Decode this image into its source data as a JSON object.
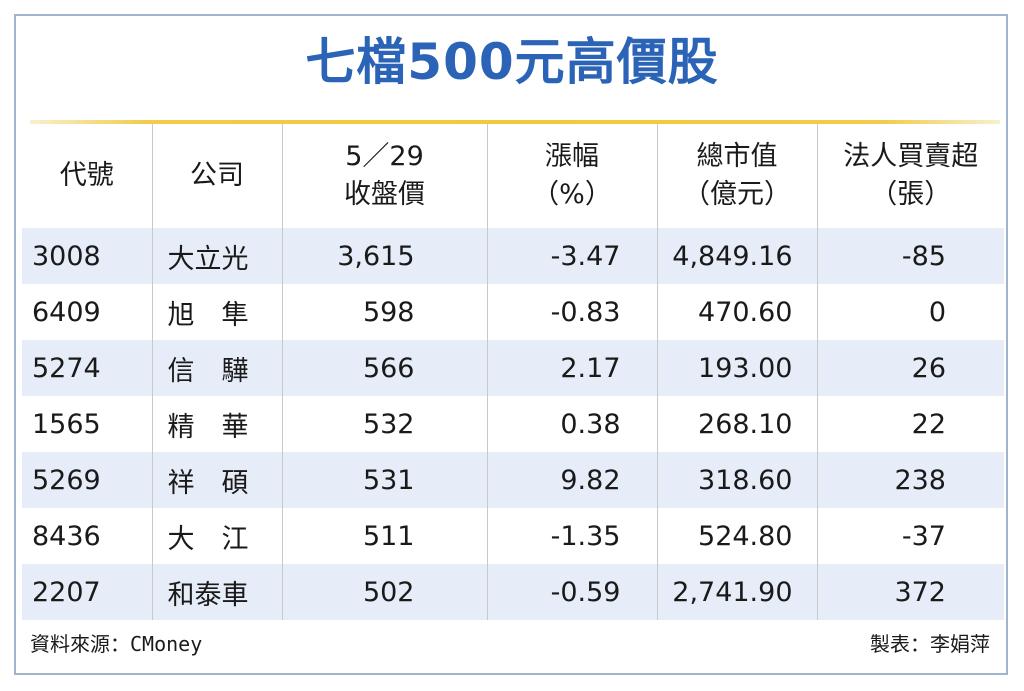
{
  "title": "七檔500元高價股",
  "headers": {
    "code": "代號",
    "company": "公司",
    "price_line1": "5／29",
    "price_line2": "收盤價",
    "change_line1": "漲幅",
    "change_line2": "（%）",
    "cap_line1": "總市值",
    "cap_line2": "（億元）",
    "net_line1": "法人買賣超",
    "net_line2": "（張）"
  },
  "rows": [
    {
      "code": "3008",
      "company": "大立光",
      "price": "3,615",
      "change": "-3.47",
      "cap": "4,849.16",
      "net": "-85"
    },
    {
      "code": "6409",
      "company": "旭　隼",
      "price": "598",
      "change": "-0.83",
      "cap": "470.60",
      "net": "0"
    },
    {
      "code": "5274",
      "company": "信　驊",
      "price": "566",
      "change": "2.17",
      "cap": "193.00",
      "net": "26"
    },
    {
      "code": "1565",
      "company": "精　華",
      "price": "532",
      "change": "0.38",
      "cap": "268.10",
      "net": "22"
    },
    {
      "code": "5269",
      "company": "祥　碩",
      "price": "531",
      "change": "9.82",
      "cap": "318.60",
      "net": "238"
    },
    {
      "code": "8436",
      "company": "大　江",
      "price": "511",
      "change": "-1.35",
      "cap": "524.80",
      "net": "-37"
    },
    {
      "code": "2207",
      "company": "和泰車",
      "price": "502",
      "change": "-0.59",
      "cap": "2,741.90",
      "net": "372"
    }
  ],
  "footer": {
    "source_label": "資料來源：",
    "source_value": "CMoney",
    "credit": "製表：李娟萍"
  }
}
